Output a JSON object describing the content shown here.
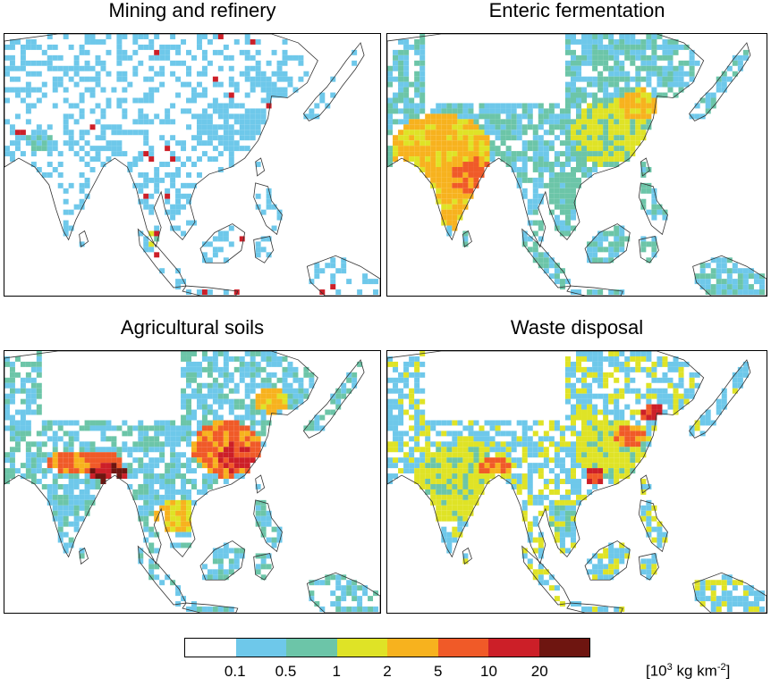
{
  "panels": [
    {
      "id": "mining",
      "title": "Mining and refinery"
    },
    {
      "id": "enteric",
      "title": "Enteric fermentation"
    },
    {
      "id": "soils",
      "title": "Agricultural soils"
    },
    {
      "id": "waste",
      "title": "Waste disposal"
    }
  ],
  "legend": {
    "colors": [
      "#ffffff",
      "#6ec8ea",
      "#6cc5a8",
      "#dfe326",
      "#f7b21e",
      "#f05a28",
      "#cc1f28",
      "#6e1510"
    ],
    "ticks": [
      "0.1",
      "0.5",
      "1",
      "2",
      "5",
      "10",
      "20"
    ],
    "unit_prefix": "[10",
    "unit_exp1": "3",
    "unit_mid": " kg km",
    "unit_exp2": "-2",
    "unit_suffix": "]"
  }
}
